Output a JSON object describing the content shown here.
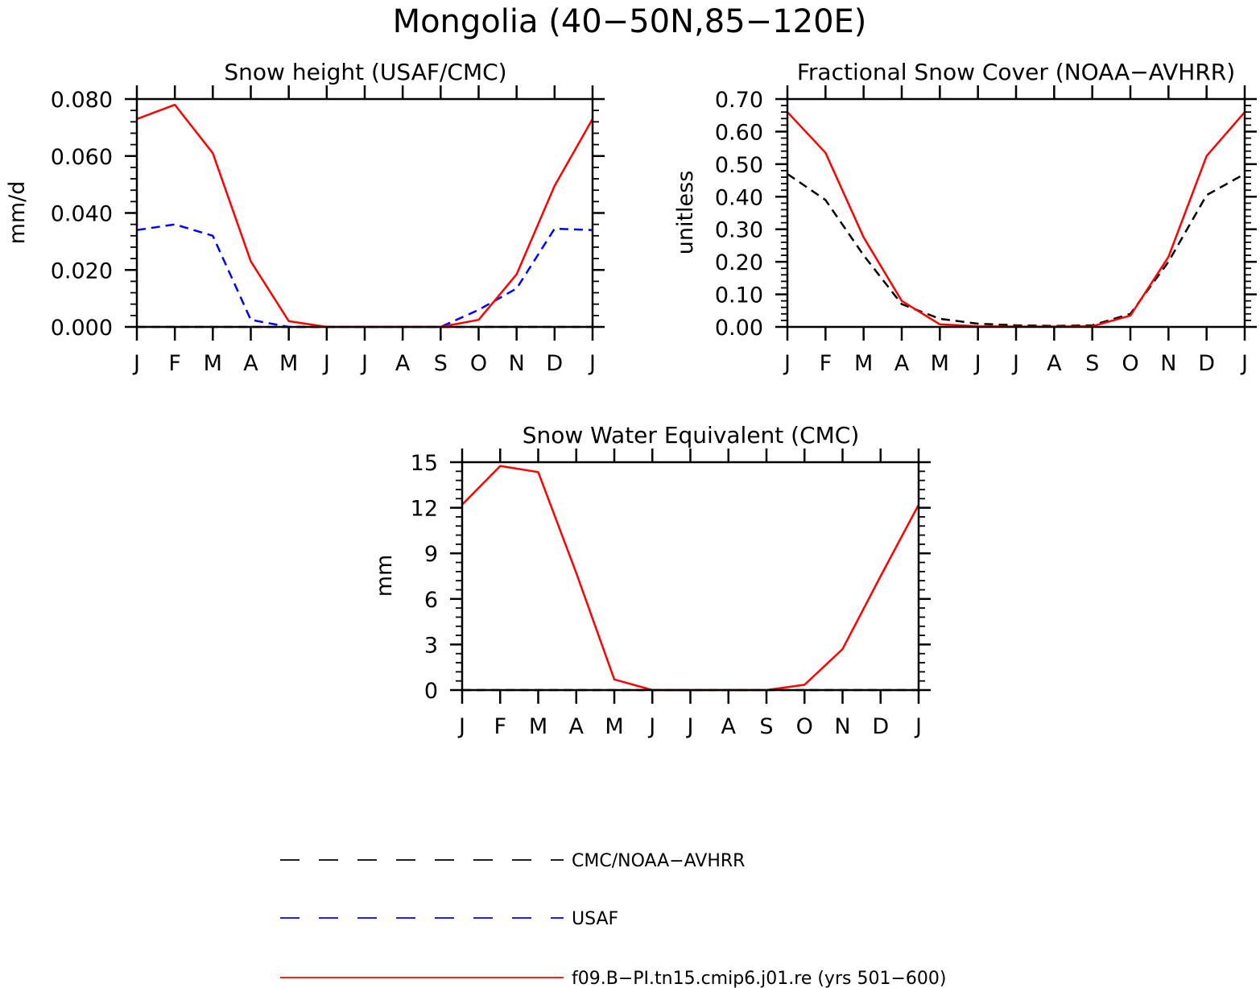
{
  "figure": {
    "title": "Mongolia (40−50N,85−120E)"
  },
  "legend": {
    "entries": [
      {
        "label": "CMC/NOAA−AVHRR",
        "color": "#000000",
        "style": "dashed"
      },
      {
        "label": "USAF",
        "color": "#0000ff",
        "style": "dashed"
      },
      {
        "label": "f09.B−PI.tn15.cmip6.j01.re (yrs 501−600)",
        "color": "#ff0000",
        "style": "solid"
      }
    ]
  },
  "chart_data": [
    {
      "type": "line",
      "title": "Snow height (USAF/CMC)",
      "ylabel": "mm/d",
      "xlabel": "",
      "categories": [
        "J",
        "F",
        "M",
        "A",
        "M",
        "J",
        "J",
        "A",
        "S",
        "O",
        "N",
        "D",
        "J"
      ],
      "ylim": [
        0,
        0.08
      ],
      "yticks": [
        "0.000",
        "0.020",
        "0.040",
        "0.060",
        "0.080"
      ],
      "ytick_values": [
        0,
        0.02,
        0.04,
        0.06,
        0.08
      ],
      "series": [
        {
          "name": "f09.B−PI.tn15.cmip6.j01.re (yrs 501−600)",
          "color": "#ff0000",
          "style": "solid",
          "values": [
            0.073,
            0.078,
            0.061,
            0.023,
            0.002,
            0.0,
            0.0,
            0.0,
            0.0,
            0.0025,
            0.0185,
            0.0495,
            0.073
          ]
        },
        {
          "name": "USAF",
          "color": "#0000ff",
          "style": "dashed",
          "values": [
            0.034,
            0.036,
            0.032,
            0.0025,
            0.0,
            0.0,
            0.0,
            0.0,
            0.0,
            0.006,
            0.0135,
            0.0345,
            0.034
          ]
        },
        {
          "name": "CMC/NOAA−AVHRR",
          "color": "#000000",
          "style": "dashed",
          "values": [
            0.0,
            0.0,
            0.0,
            0.0,
            0.0,
            0.0,
            0.0,
            0.0,
            0.0,
            0.0,
            0.0,
            0.0,
            0.0
          ]
        }
      ]
    },
    {
      "type": "line",
      "title": "Fractional Snow Cover (NOAA−AVHRR)",
      "ylabel": "unitless",
      "xlabel": "",
      "categories": [
        "J",
        "F",
        "M",
        "A",
        "M",
        "J",
        "J",
        "A",
        "S",
        "O",
        "N",
        "D",
        "J"
      ],
      "ylim": [
        0,
        0.7
      ],
      "yticks": [
        "0.00",
        "0.10",
        "0.20",
        "0.30",
        "0.40",
        "0.50",
        "0.60",
        "0.70"
      ],
      "ytick_values": [
        0,
        0.1,
        0.2,
        0.3,
        0.4,
        0.5,
        0.6,
        0.7
      ],
      "series": [
        {
          "name": "f09.B−PI.tn15.cmip6.j01.re (yrs 501−600)",
          "color": "#ff0000",
          "style": "solid",
          "values": [
            0.66,
            0.535,
            0.275,
            0.08,
            0.008,
            0.002,
            0.001,
            0.001,
            0.002,
            0.035,
            0.215,
            0.525,
            0.66
          ]
        },
        {
          "name": "CMC/NOAA−AVHRR",
          "color": "#000000",
          "style": "dashed",
          "values": [
            0.47,
            0.39,
            0.22,
            0.07,
            0.025,
            0.01,
            0.005,
            0.003,
            0.005,
            0.04,
            0.2,
            0.405,
            0.47
          ]
        }
      ]
    },
    {
      "type": "line",
      "title": "Snow Water Equivalent (CMC)",
      "ylabel": "mm",
      "xlabel": "",
      "categories": [
        "J",
        "F",
        "M",
        "A",
        "M",
        "J",
        "J",
        "A",
        "S",
        "O",
        "N",
        "D",
        "J"
      ],
      "ylim": [
        0,
        15
      ],
      "yticks": [
        "0",
        "3",
        "6",
        "9",
        "12",
        "15"
      ],
      "ytick_values": [
        0,
        3,
        6,
        9,
        12,
        15
      ],
      "series": [
        {
          "name": "f09.B−PI.tn15.cmip6.j01.re (yrs 501−600)",
          "color": "#ff0000",
          "style": "solid",
          "values": [
            12.2,
            14.75,
            14.35,
            7.7,
            0.7,
            0.0,
            0.0,
            0.0,
            0.0,
            0.35,
            2.7,
            7.5,
            12.2
          ]
        },
        {
          "name": "CMC/NOAA−AVHRR",
          "color": "#000000",
          "style": "dashed",
          "values": [
            0.0,
            0.0,
            0.0,
            0.0,
            0.0,
            0.0,
            0.0,
            0.0,
            0.0,
            0.0,
            0.0,
            0.0,
            0.0
          ]
        }
      ]
    }
  ]
}
